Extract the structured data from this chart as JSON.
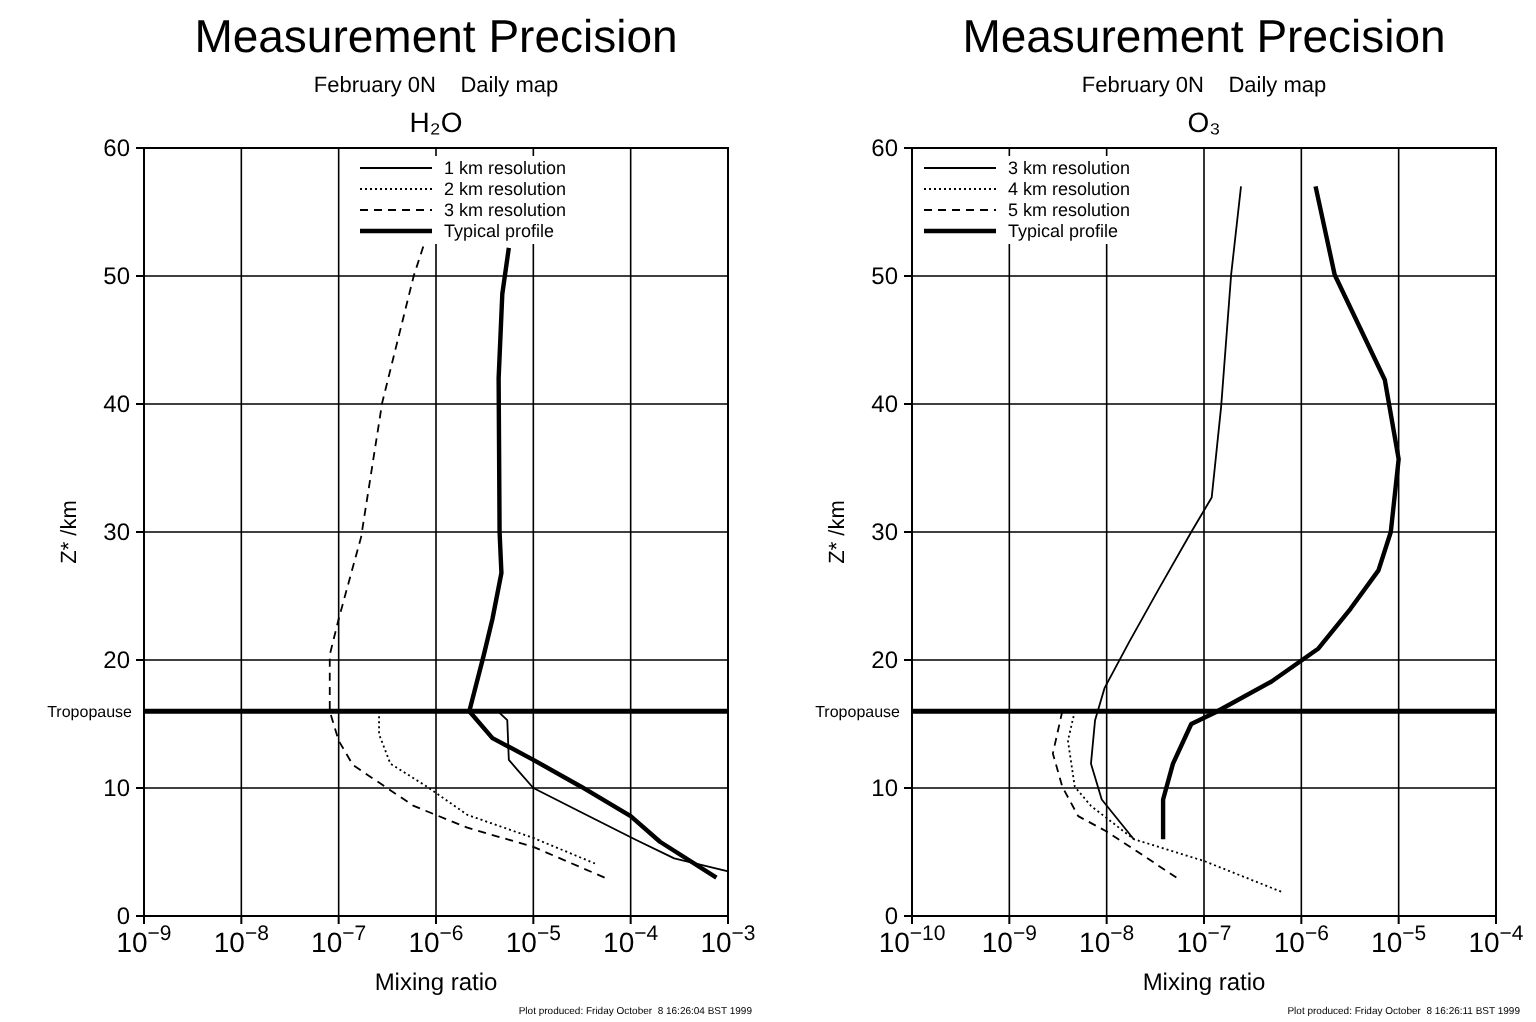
{
  "chart_data": [
    {
      "type": "line",
      "title": "Measurement Precision",
      "subtitle": "February 0N    Daily map",
      "xlabel": "Mixing ratio",
      "ylabel": "Z* /km",
      "annotations": [
        "H₂O",
        "Plot produced: Friday October  8 16:26:04 BST 1999"
      ],
      "log": "x",
      "grid": true,
      "legend": "top",
      "xlim": [
        1e-09,
        0.001
      ],
      "xticks": [
        {
          "value": 1e-09,
          "label": "10$^{−9}$"
        },
        {
          "value": 1e-08,
          "label": "10$^{−8}$"
        },
        {
          "value": 1e-07,
          "label": "10$^{−7}$"
        },
        {
          "value": 1e-06,
          "label": "10$^{−6}$"
        },
        {
          "value": 1e-05,
          "label": "10$^{−5}$"
        },
        {
          "value": 0.0001,
          "label": "10$^{−4}$"
        },
        {
          "value": 0.001,
          "label": "10$^{−3}$"
        }
      ],
      "ylim": [
        0,
        60
      ],
      "yticks": [
        0,
        10,
        20,
        30,
        40,
        50,
        60
      ],
      "ref_lines": [
        {
          "axis": "y",
          "value": 16,
          "label": "Tropopause",
          "color": "#000000"
        }
      ],
      "series": [
        {
          "name": "1 km resolution",
          "color": "#000000",
          "line_style": "solid",
          "x": [
            4.3e-06,
            5.4e-06,
            5.6e-06,
            6.9e-06,
            1e-05,
            3.1e-05,
            0.00011,
            0.00028,
            0.00098
          ],
          "values": [
            16,
            15.3,
            12.2,
            11.4,
            10,
            8.1,
            6.0,
            4.5,
            3.5
          ]
        },
        {
          "name": "2 km resolution",
          "color": "#000000",
          "line_style": "dotted",
          "x": [
            2.6e-07,
            2.6e-07,
            3.4e-07,
            8.1e-07,
            2.1e-06,
            1e-05,
            4.3e-05
          ],
          "values": [
            16,
            14.2,
            11.9,
            10.1,
            7.9,
            6.1,
            4.1
          ]
        },
        {
          "name": "3 km resolution",
          "color": "#000000",
          "line_style": "dashed",
          "x": [
            7.4e-07,
            5.9e-07,
            2.8e-07,
            1.7e-07,
            1e-07,
            8.1e-08,
            8.1e-08,
            1e-07,
            1.4e-07,
            5.9e-07,
            2.1e-06,
            1e-05,
            5.4e-05
          ],
          "values": [
            52.3,
            50,
            40.1,
            29.6,
            23.2,
            20.4,
            16,
            13.7,
            11.8,
            8.6,
            6.9,
            5.4,
            3.0
          ]
        },
        {
          "name": "Typical profile",
          "color": "#000000",
          "line_style": "solid",
          "x": [
            5.6e-06,
            4.8e-06,
            4.4e-06,
            4.5e-06,
            4.7e-06,
            3.8e-06,
            3.1e-06,
            2.2e-06,
            3.8e-06,
            1e-05,
            3.1e-05,
            0.0001,
            0.0002,
            0.00076
          ],
          "values": [
            52.2,
            48.6,
            42,
            30,
            26.8,
            23.2,
            20.4,
            16,
            13.9,
            12.2,
            10.1,
            7.8,
            5.8,
            3.0
          ]
        }
      ]
    },
    {
      "type": "line",
      "title": "Measurement Precision",
      "subtitle": "February 0N    Daily map",
      "xlabel": "Mixing ratio",
      "ylabel": "Z* /km",
      "annotations": [
        "O₃",
        "Plot produced: Friday October  8 16:26:11 BST 1999"
      ],
      "log": "x",
      "grid": true,
      "legend": "top left",
      "xlim": [
        1e-10,
        0.0001
      ],
      "xticks": [
        {
          "value": 1e-10,
          "label": "10$^{−10}$"
        },
        {
          "value": 1e-09,
          "label": "10$^{−9}$"
        },
        {
          "value": 1e-08,
          "label": "10$^{−8}$"
        },
        {
          "value": 1e-07,
          "label": "10$^{−7}$"
        },
        {
          "value": 1e-06,
          "label": "10$^{−6}$"
        },
        {
          "value": 1e-05,
          "label": "10$^{−5}$"
        },
        {
          "value": 0.0001,
          "label": "10$^{−4}$"
        }
      ],
      "ylim": [
        0,
        60
      ],
      "yticks": [
        0,
        10,
        20,
        30,
        40,
        50,
        60
      ],
      "ref_lines": [
        {
          "axis": "y",
          "value": 16,
          "label": "Tropopause",
          "color": "#000000"
        }
      ],
      "series": [
        {
          "name": "3 km resolution",
          "color": "#000000",
          "line_style": "solid",
          "x": [
            2.4e-07,
            1.9e-07,
            1.5e-07,
            1.2e-07,
            7.4e-08,
            3.4e-08,
            1.7e-08,
            9.5e-09,
            7.6e-09,
            6.9e-09,
            8.9e-09,
            1.9e-08
          ],
          "values": [
            57,
            50.1,
            39.8,
            32.7,
            30,
            25.5,
            21.4,
            17.8,
            15.3,
            11.9,
            9.1,
            6.0
          ]
        },
        {
          "name": "4 km resolution",
          "color": "#000000",
          "line_style": "dotted",
          "x": [
            4.7e-09,
            4e-09,
            4.7e-09,
            6.9e-09,
            1.9e-08,
            1e-07,
            6.2e-07
          ],
          "values": [
            16,
            13.7,
            10.1,
            8.6,
            6.0,
            4.3,
            1.9
          ]
        },
        {
          "name": "5 km resolution",
          "color": "#000000",
          "line_style": "dashed",
          "x": [
            3.5e-09,
            2.8e-09,
            3.5e-09,
            5.1e-09,
            1e-08,
            2.1e-08,
            5.2e-08
          ],
          "values": [
            16,
            12.7,
            10.1,
            7.8,
            6.6,
            5.0,
            3.0
          ]
        },
        {
          "name": "Typical profile",
          "color": "#000000",
          "line_style": "solid",
          "x": [
            1.4e-06,
            2.2e-06,
            7.2e-06,
            1e-05,
            8.3e-06,
            6.2e-06,
            3.2e-06,
            1.5e-06,
            4.9e-07,
            1.3e-07,
            7.4e-08,
            4.8e-08,
            3.8e-08,
            3.8e-08
          ],
          "values": [
            57,
            50.1,
            41.9,
            35.7,
            30,
            27,
            24,
            20.9,
            18.3,
            15.9,
            15,
            11.9,
            9.1,
            6.0
          ]
        }
      ]
    }
  ]
}
